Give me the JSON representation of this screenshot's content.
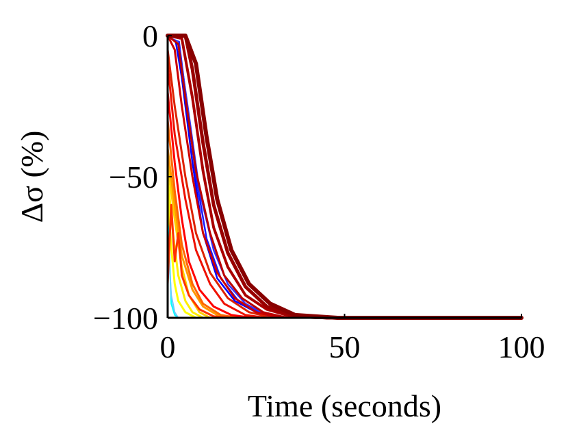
{
  "chart_data": {
    "type": "line",
    "title": "",
    "xlabel": "Time (seconds)",
    "ylabel": "Δσ (%)",
    "xlim": [
      0,
      100
    ],
    "ylim": [
      -100,
      0
    ],
    "xticks": [
      0,
      50,
      100
    ],
    "xtick_labels": [
      "0",
      "50",
      "100"
    ],
    "yticks": [
      0,
      -50,
      -100
    ],
    "ytick_labels": [
      "0",
      "−50",
      "−100"
    ],
    "grid": false,
    "legend": "none",
    "series": [
      {
        "color": "#00ffff",
        "width": 2,
        "values": [
          [
            0,
            -60
          ],
          [
            1,
            -95
          ],
          [
            2,
            -99
          ],
          [
            3,
            -100
          ],
          [
            100,
            -100
          ]
        ]
      },
      {
        "color": "#66ccff",
        "width": 2,
        "values": [
          [
            0,
            -70
          ],
          [
            1,
            -92
          ],
          [
            2,
            -98
          ],
          [
            3,
            -100
          ],
          [
            100,
            -100
          ]
        ]
      },
      {
        "color": "#ffff00",
        "width": 3,
        "values": [
          [
            0,
            -55
          ],
          [
            1,
            -75
          ],
          [
            2,
            -88
          ],
          [
            3,
            -94
          ],
          [
            5,
            -98
          ],
          [
            8,
            -100
          ],
          [
            100,
            -100
          ]
        ]
      },
      {
        "color": "#ffee00",
        "width": 3,
        "values": [
          [
            0,
            -50
          ],
          [
            1.5,
            -70
          ],
          [
            3,
            -85
          ],
          [
            5,
            -94
          ],
          [
            7,
            -98
          ],
          [
            10,
            -100
          ],
          [
            100,
            -100
          ]
        ]
      },
      {
        "color": "#ffcc00",
        "width": 3,
        "values": [
          [
            0,
            -45
          ],
          [
            2,
            -65
          ],
          [
            4,
            -82
          ],
          [
            6,
            -92
          ],
          [
            9,
            -98
          ],
          [
            12,
            -100
          ],
          [
            100,
            -100
          ]
        ]
      },
      {
        "color": "#ff9900",
        "width": 3,
        "values": [
          [
            0,
            -40
          ],
          [
            2,
            -60
          ],
          [
            4,
            -78
          ],
          [
            7,
            -90
          ],
          [
            10,
            -96
          ],
          [
            14,
            -99
          ],
          [
            18,
            -100
          ],
          [
            100,
            -100
          ]
        ]
      },
      {
        "color": "#ff6600",
        "width": 3,
        "values": [
          [
            0,
            -30
          ],
          [
            2,
            -55
          ],
          [
            4,
            -74
          ],
          [
            7,
            -88
          ],
          [
            10,
            -95
          ],
          [
            15,
            -99
          ],
          [
            20,
            -100
          ],
          [
            100,
            -100
          ]
        ]
      },
      {
        "color": "#ff3300",
        "width": 3,
        "values": [
          [
            0,
            -88
          ],
          [
            1,
            -60
          ],
          [
            2,
            -80
          ],
          [
            3,
            -70
          ],
          [
            4,
            -85
          ],
          [
            6,
            -92
          ],
          [
            9,
            -97
          ],
          [
            13,
            -99.5
          ],
          [
            18,
            -100
          ],
          [
            100,
            -100
          ]
        ]
      },
      {
        "color": "#ff0000",
        "width": 3,
        "values": [
          [
            0,
            -20
          ],
          [
            2,
            -45
          ],
          [
            4,
            -65
          ],
          [
            6,
            -80
          ],
          [
            9,
            -90
          ],
          [
            13,
            -96
          ],
          [
            18,
            -99
          ],
          [
            24,
            -100
          ],
          [
            100,
            -100
          ]
        ]
      },
      {
        "color": "#ee1100",
        "width": 3,
        "values": [
          [
            0,
            -10
          ],
          [
            2,
            -35
          ],
          [
            5,
            -58
          ],
          [
            8,
            -76
          ],
          [
            12,
            -88
          ],
          [
            16,
            -95
          ],
          [
            22,
            -99
          ],
          [
            28,
            -100
          ],
          [
            100,
            -100
          ]
        ]
      },
      {
        "color": "#dd2200",
        "width": 3,
        "values": [
          [
            0,
            -5
          ],
          [
            2,
            -25
          ],
          [
            5,
            -50
          ],
          [
            8,
            -70
          ],
          [
            12,
            -84
          ],
          [
            17,
            -93
          ],
          [
            23,
            -98
          ],
          [
            30,
            -100
          ],
          [
            100,
            -100
          ]
        ]
      },
      {
        "color": "#0000ff",
        "width": 2.5,
        "values": [
          [
            0,
            0
          ],
          [
            2,
            0
          ],
          [
            4,
            -15
          ],
          [
            7,
            -45
          ],
          [
            10,
            -70
          ],
          [
            14,
            -86
          ],
          [
            19,
            -94
          ],
          [
            25,
            -98
          ],
          [
            32,
            -100
          ],
          [
            100,
            -100
          ]
        ]
      },
      {
        "color": "#1a1aff",
        "width": 2.5,
        "values": [
          [
            0,
            0
          ],
          [
            3,
            0
          ],
          [
            5,
            -20
          ],
          [
            8,
            -50
          ],
          [
            11,
            -72
          ],
          [
            15,
            -86
          ],
          [
            20,
            -94
          ],
          [
            26,
            -98
          ],
          [
            33,
            -100
          ],
          [
            100,
            -100
          ]
        ]
      },
      {
        "color": "#3333ff",
        "width": 2.5,
        "values": [
          [
            0,
            0
          ],
          [
            3,
            -2
          ],
          [
            6,
            -28
          ],
          [
            9,
            -55
          ],
          [
            13,
            -76
          ],
          [
            17,
            -88
          ],
          [
            22,
            -95
          ],
          [
            28,
            -99
          ],
          [
            34,
            -100
          ],
          [
            100,
            -100
          ]
        ]
      },
      {
        "color": "#ffffff",
        "width": 2,
        "values": [
          [
            0,
            0
          ],
          [
            4,
            -2
          ],
          [
            7,
            -30
          ],
          [
            10,
            -56
          ],
          [
            14,
            -76
          ],
          [
            18,
            -88
          ],
          [
            23,
            -95
          ],
          [
            29,
            -99
          ],
          [
            35,
            -100
          ],
          [
            100,
            -100
          ]
        ]
      },
      {
        "color": "#cc0000",
        "width": 3,
        "values": [
          [
            0,
            0
          ],
          [
            2,
            -5
          ],
          [
            4,
            -25
          ],
          [
            7,
            -50
          ],
          [
            10,
            -70
          ],
          [
            14,
            -84
          ],
          [
            19,
            -93
          ],
          [
            25,
            -98
          ],
          [
            32,
            -100
          ],
          [
            100,
            -100
          ]
        ]
      },
      {
        "color": "#bb0000",
        "width": 3,
        "values": [
          [
            0,
            0
          ],
          [
            3,
            -3
          ],
          [
            5,
            -22
          ],
          [
            8,
            -48
          ],
          [
            12,
            -70
          ],
          [
            16,
            -85
          ],
          [
            21,
            -93
          ],
          [
            27,
            -98
          ],
          [
            34,
            -100
          ],
          [
            100,
            -100
          ]
        ]
      },
      {
        "color": "#aa0000",
        "width": 4,
        "values": [
          [
            0,
            0
          ],
          [
            4,
            -1
          ],
          [
            7,
            -22
          ],
          [
            10,
            -48
          ],
          [
            13,
            -68
          ],
          [
            17,
            -82
          ],
          [
            22,
            -92
          ],
          [
            28,
            -97
          ],
          [
            35,
            -99.5
          ],
          [
            42,
            -100
          ],
          [
            100,
            -100
          ]
        ]
      },
      {
        "color": "#990000",
        "width": 5,
        "values": [
          [
            0,
            0
          ],
          [
            5,
            0
          ],
          [
            7,
            -12
          ],
          [
            10,
            -38
          ],
          [
            13,
            -60
          ],
          [
            17,
            -77
          ],
          [
            22,
            -89
          ],
          [
            28,
            -96
          ],
          [
            35,
            -99
          ],
          [
            45,
            -100
          ],
          [
            100,
            -100
          ]
        ]
      },
      {
        "color": "#880000",
        "width": 6,
        "values": [
          [
            0,
            0
          ],
          [
            5,
            0
          ],
          [
            8,
            -10
          ],
          [
            11,
            -36
          ],
          [
            14,
            -58
          ],
          [
            18,
            -76
          ],
          [
            23,
            -88
          ],
          [
            29,
            -95
          ],
          [
            36,
            -99
          ],
          [
            48,
            -100
          ],
          [
            100,
            -100
          ]
        ]
      }
    ]
  }
}
